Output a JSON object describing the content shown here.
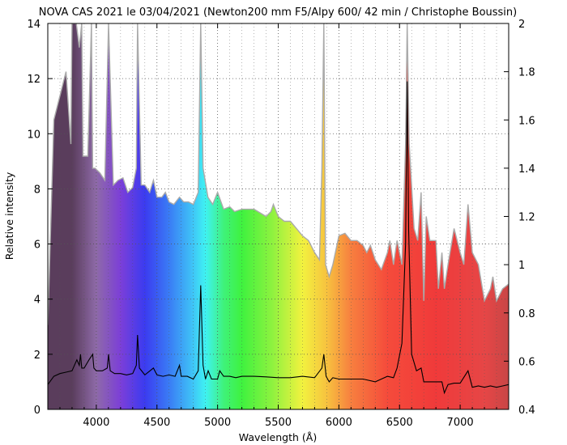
{
  "chart_data": {
    "type": "line",
    "title": "NOVA CAS 2021 le 03/04/2021 (Newton200 mm F5/Alpy 600/ 42 min / Christophe Boussin)",
    "xlabel": "Wavelength (Å)",
    "ylabel": "Relative intensity",
    "xlim": [
      3600,
      7400
    ],
    "ylim": [
      0,
      14
    ],
    "y2lim": [
      0.4,
      2.0
    ],
    "x_ticks": [
      4000,
      4500,
      5000,
      5500,
      6000,
      6500,
      7000
    ],
    "y_ticks": [
      0,
      2,
      4,
      6,
      8,
      10,
      12,
      14
    ],
    "y2_ticks": [
      0.4,
      0.6,
      0.8,
      1,
      1.2,
      1.4,
      1.6,
      1.8,
      2
    ],
    "grid": true,
    "legend": "none",
    "series": [
      {
        "axis": "left",
        "color": "#000000",
        "x": [
          3600,
          3650,
          3700,
          3750,
          3800,
          3840,
          3860,
          3870,
          3880,
          3900,
          3940,
          3970,
          3980,
          4000,
          4050,
          4090,
          4101,
          4115,
          4150,
          4200,
          4250,
          4300,
          4330,
          4340,
          4355,
          4400,
          4471,
          4500,
          4550,
          4600,
          4650,
          4686,
          4700,
          4750,
          4800,
          4840,
          4861,
          4880,
          4900,
          4922,
          4950,
          5000,
          5018,
          5050,
          5100,
          5150,
          5200,
          5300,
          5400,
          5500,
          5600,
          5700,
          5800,
          5860,
          5876,
          5895,
          5920,
          5950,
          6000,
          6100,
          6200,
          6300,
          6350,
          6400,
          6450,
          6480,
          6520,
          6550,
          6563,
          6575,
          6600,
          6640,
          6678,
          6700,
          6750,
          6800,
          6850,
          6870,
          6900,
          6950,
          7000,
          7065,
          7100,
          7150,
          7200,
          7250,
          7300,
          7350,
          7400
        ],
        "y": [
          0.9,
          1.2,
          1.3,
          1.35,
          1.4,
          1.8,
          1.6,
          2.0,
          1.5,
          1.5,
          1.8,
          2.0,
          1.5,
          1.4,
          1.4,
          1.5,
          2.0,
          1.4,
          1.3,
          1.3,
          1.25,
          1.3,
          1.6,
          2.7,
          1.5,
          1.25,
          1.5,
          1.25,
          1.2,
          1.25,
          1.2,
          1.6,
          1.2,
          1.2,
          1.1,
          1.4,
          4.5,
          1.6,
          1.1,
          1.4,
          1.1,
          1.1,
          1.4,
          1.2,
          1.2,
          1.15,
          1.2,
          1.2,
          1.18,
          1.15,
          1.15,
          1.2,
          1.15,
          1.5,
          2.0,
          1.2,
          1.0,
          1.15,
          1.1,
          1.1,
          1.1,
          1.0,
          1.1,
          1.2,
          1.15,
          1.5,
          2.4,
          6.0,
          11.9,
          6.5,
          2.0,
          1.4,
          1.5,
          1.0,
          1.0,
          1.0,
          1.0,
          0.6,
          0.9,
          0.95,
          0.95,
          1.4,
          0.8,
          0.85,
          0.8,
          0.85,
          0.8,
          0.85,
          0.9
        ]
      },
      {
        "axis": "right",
        "color": "#aaaaaa",
        "x": [
          3600,
          3650,
          3700,
          3750,
          3790,
          3800,
          3835,
          3860,
          3880,
          3890,
          3930,
          3960,
          3970,
          3990,
          4030,
          4070,
          4101,
          4140,
          4180,
          4220,
          4260,
          4300,
          4330,
          4340,
          4370,
          4400,
          4440,
          4471,
          4500,
          4540,
          4570,
          4600,
          4640,
          4686,
          4720,
          4760,
          4800,
          4840,
          4861,
          4880,
          4920,
          4960,
          5000,
          5050,
          5100,
          5140,
          5200,
          5300,
          5400,
          5440,
          5460,
          5500,
          5550,
          5600,
          5650,
          5700,
          5750,
          5800,
          5840,
          5860,
          5876,
          5890,
          5920,
          5950,
          6000,
          6050,
          6100,
          6150,
          6200,
          6230,
          6260,
          6300,
          6350,
          6400,
          6420,
          6450,
          6480,
          6520,
          6550,
          6563,
          6580,
          6620,
          6650,
          6678,
          6700,
          6720,
          6750,
          6800,
          6820,
          6850,
          6870,
          6900,
          6950,
          7000,
          7030,
          7065,
          7100,
          7150,
          7200,
          7250,
          7270,
          7300,
          7350,
          7400
        ],
        "y": [
          0.75,
          1.6,
          1.7,
          1.8,
          1.5,
          2.0,
          2.0,
          1.9,
          2.0,
          1.45,
          1.45,
          2.0,
          1.4,
          1.4,
          1.38,
          1.35,
          2.0,
          1.33,
          1.35,
          1.36,
          1.3,
          1.32,
          1.4,
          2.0,
          1.33,
          1.33,
          1.3,
          1.35,
          1.28,
          1.28,
          1.3,
          1.26,
          1.25,
          1.28,
          1.26,
          1.26,
          1.25,
          1.3,
          2.0,
          1.4,
          1.28,
          1.25,
          1.3,
          1.23,
          1.24,
          1.22,
          1.23,
          1.23,
          1.2,
          1.22,
          1.25,
          1.2,
          1.18,
          1.18,
          1.15,
          1.12,
          1.1,
          1.05,
          1.02,
          1.4,
          2.0,
          1.0,
          0.95,
          1.0,
          1.12,
          1.13,
          1.1,
          1.1,
          1.08,
          1.05,
          1.08,
          1.02,
          0.98,
          1.05,
          1.1,
          1.0,
          1.1,
          1.0,
          1.5,
          2.0,
          1.5,
          1.15,
          1.1,
          1.3,
          0.85,
          1.2,
          1.1,
          1.1,
          0.9,
          1.05,
          0.9,
          1.0,
          1.15,
          1.05,
          1.0,
          1.25,
          1.05,
          1.0,
          0.85,
          0.9,
          0.95,
          0.85,
          0.9,
          0.92
        ]
      }
    ]
  },
  "colors": {
    "spectrum_stops": [
      {
        "nm": 380,
        "color": "#5a3d5c"
      },
      {
        "nm": 400,
        "color": "#8e6aa8"
      },
      {
        "nm": 420,
        "color": "#7c3fd8"
      },
      {
        "nm": 440,
        "color": "#3b3bf0"
      },
      {
        "nm": 460,
        "color": "#3a7cf5"
      },
      {
        "nm": 480,
        "color": "#3fc6f7"
      },
      {
        "nm": 490,
        "color": "#3ff2f2"
      },
      {
        "nm": 505,
        "color": "#3ff27a"
      },
      {
        "nm": 520,
        "color": "#3ff23f"
      },
      {
        "nm": 545,
        "color": "#8ef23f"
      },
      {
        "nm": 570,
        "color": "#f2f23f"
      },
      {
        "nm": 590,
        "color": "#f7c23f"
      },
      {
        "nm": 610,
        "color": "#f77f3f"
      },
      {
        "nm": 640,
        "color": "#f54b3b"
      },
      {
        "nm": 680,
        "color": "#f03a3a"
      },
      {
        "nm": 720,
        "color": "#e64646"
      },
      {
        "nm": 740,
        "color": "#c84646"
      }
    ]
  }
}
